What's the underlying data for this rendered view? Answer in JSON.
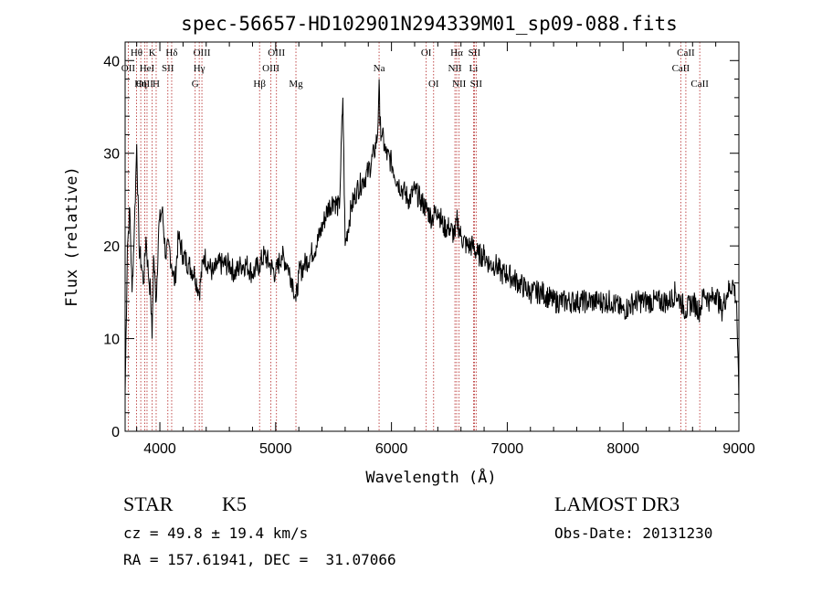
{
  "info": {
    "object_class": "STAR",
    "subclass": "K5",
    "survey": "LAMOST DR3",
    "redshift": "cz = 49.8 ± 19.4 km/s",
    "obs_date": "Obs-Date: 20131230",
    "coords": "RA = 157.61941, DEC =  31.07066"
  },
  "chart_data": {
    "type": "line",
    "title": "spec-56657-HD102901N294339M01_sp09-088.fits",
    "xlabel": "Wavelength (Å)",
    "ylabel": "Flux (relative)",
    "xlim": [
      3700,
      9000
    ],
    "ylim": [
      0,
      42
    ],
    "x_ticks": [
      4000,
      5000,
      6000,
      7000,
      8000,
      9000
    ],
    "y_ticks": [
      0,
      10,
      20,
      30,
      40
    ],
    "grid": false,
    "series": [
      {
        "x": [
          3700,
          3720,
          3740,
          3760,
          3780,
          3800,
          3820,
          3840,
          3860,
          3880,
          3900,
          3920,
          3933,
          3945,
          3968,
          3990,
          4020,
          4050,
          4080,
          4101,
          4130,
          4160,
          4200,
          4250,
          4300,
          4340,
          4380,
          4420,
          4460,
          4500,
          4550,
          4600,
          4650,
          4700,
          4750,
          4800,
          4861,
          4900,
          4950,
          5000,
          5050,
          5100,
          5150,
          5175,
          5200,
          5250,
          5300,
          5350,
          5400,
          5450,
          5500,
          5550,
          5580,
          5600,
          5650,
          5700,
          5750,
          5800,
          5850,
          5880,
          5893,
          5900,
          5920,
          5950,
          6000,
          6050,
          6100,
          6150,
          6200,
          6250,
          6300,
          6350,
          6400,
          6450,
          6500,
          6550,
          6563,
          6600,
          6650,
          6700,
          6750,
          6800,
          6850,
          6900,
          6950,
          7000,
          7100,
          7200,
          7300,
          7400,
          7500,
          7600,
          7700,
          7800,
          7900,
          8000,
          8100,
          8200,
          8300,
          8400,
          8450,
          8500,
          8542,
          8600,
          8662,
          8700,
          8750,
          8800,
          8850,
          8900,
          8950,
          8980,
          9000
        ],
        "y": [
          4,
          20,
          24,
          15,
          22,
          31,
          20,
          18,
          16,
          21,
          17,
          15,
          10,
          19,
          14,
          22,
          24,
          19,
          20,
          18,
          16,
          21,
          19,
          18,
          17,
          15,
          19,
          18,
          17,
          18,
          18,
          18,
          17,
          18,
          18,
          17,
          18,
          19,
          18,
          17,
          19,
          18,
          16,
          14,
          17,
          18,
          19,
          20,
          22,
          24,
          25,
          24,
          36,
          20,
          24,
          26,
          27,
          28,
          30,
          32,
          38,
          33,
          32,
          30,
          29,
          27,
          26,
          25,
          26,
          25,
          24,
          23,
          24,
          22,
          22,
          21,
          23,
          21,
          20,
          20,
          19,
          19,
          18,
          18,
          17,
          17,
          16,
          15,
          15,
          14,
          14,
          14,
          14,
          14,
          14,
          13,
          14,
          14,
          14,
          14,
          15,
          14,
          13,
          14,
          13,
          15,
          14,
          15,
          13,
          15,
          16,
          14,
          3
        ]
      }
    ],
    "annotations": [
      {
        "label": "Hθ",
        "x": 3798,
        "row": 1
      },
      {
        "label": "OII",
        "x": 3727,
        "row": 2
      },
      {
        "label": "OIII",
        "x": 3869,
        "row": 3
      },
      {
        "label": "Hη",
        "x": 3835,
        "row": 3
      },
      {
        "label": "K",
        "x": 3934,
        "row": 1
      },
      {
        "label": "HeI",
        "x": 3889,
        "row": 2
      },
      {
        "label": "H",
        "x": 3968,
        "row": 3
      },
      {
        "label": "SII",
        "x": 4069,
        "row": 2
      },
      {
        "label": "Hδ",
        "x": 4102,
        "row": 1
      },
      {
        "label": "OIII",
        "x": 4363,
        "row": 1
      },
      {
        "label": "Hγ",
        "x": 4340,
        "row": 2
      },
      {
        "label": "G",
        "x": 4305,
        "row": 3
      },
      {
        "label": "Hβ",
        "x": 4861,
        "row": 3
      },
      {
        "label": "OIII",
        "x": 5007,
        "row": 1
      },
      {
        "label": "OIII",
        "x": 4959,
        "row": 2
      },
      {
        "label": "Mg",
        "x": 5175,
        "row": 3
      },
      {
        "label": "Na",
        "x": 5893,
        "row": 2
      },
      {
        "label": "OI",
        "x": 6300,
        "row": 1
      },
      {
        "label": "OI",
        "x": 6364,
        "row": 3
      },
      {
        "label": "Hα",
        "x": 6563,
        "row": 1
      },
      {
        "label": "SII",
        "x": 6716,
        "row": 1
      },
      {
        "label": "NII",
        "x": 6548,
        "row": 2
      },
      {
        "label": "Li",
        "x": 6708,
        "row": 2
      },
      {
        "label": "NII",
        "x": 6584,
        "row": 3
      },
      {
        "label": "SII",
        "x": 6731,
        "row": 3
      },
      {
        "label": "CaII",
        "x": 8542,
        "row": 1
      },
      {
        "label": "CaII",
        "x": 8498,
        "row": 2
      },
      {
        "label": "CaII",
        "x": 8662,
        "row": 3
      }
    ]
  }
}
